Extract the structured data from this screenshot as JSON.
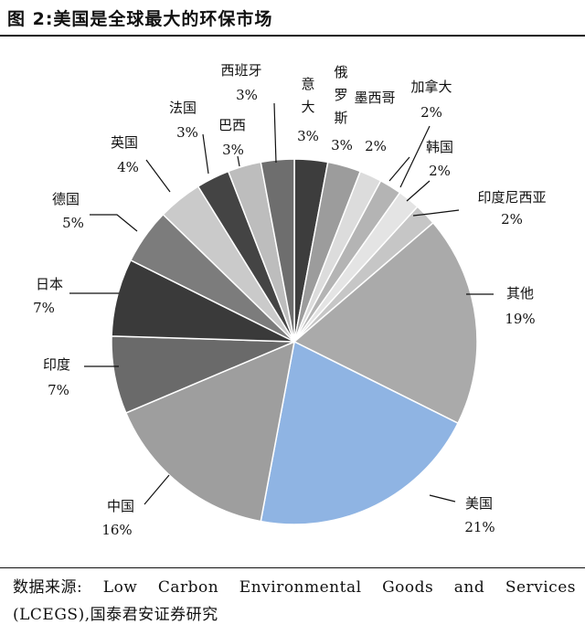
{
  "figure": {
    "title": "图 2:美国是全球最大的环保市场",
    "source_line1": [
      "数据来源:",
      "Low",
      "Carbon",
      "Environmental",
      "Goods",
      "and",
      "Services"
    ],
    "source_line2": "(LCEGS),国泰君安证券研究"
  },
  "chart_data": {
    "type": "pie",
    "title": "图 2:美国是全球最大的环保市场",
    "start": "12 o'clock, clockwise",
    "legend": "none (direct labels with leader lines)",
    "slices": [
      {
        "label": "意大利",
        "value": 3,
        "display": "3%",
        "color": "#3d3d3d"
      },
      {
        "label": "俄罗斯",
        "value": 3,
        "display": "3%",
        "color": "#9c9c9c"
      },
      {
        "label": "墨西哥",
        "value": 2,
        "display": "2%",
        "color": "#dcdcdc"
      },
      {
        "label": "加拿大",
        "value": 2,
        "display": "2%",
        "color": "#b4b4b4"
      },
      {
        "label": "韩国",
        "value": 2,
        "display": "2%",
        "color": "#e4e4e4"
      },
      {
        "label": "印度尼西亚",
        "value": 2,
        "display": "2%",
        "color": "#c6c6c6"
      },
      {
        "label": "其他",
        "value": 19,
        "display": "19%",
        "color": "#aaaaaa"
      },
      {
        "label": "美国",
        "value": 21,
        "display": "21%",
        "color": "#8fb4e3"
      },
      {
        "label": "中国",
        "value": 16,
        "display": "16%",
        "color": "#9e9e9e"
      },
      {
        "label": "印度",
        "value": 7,
        "display": "7%",
        "color": "#6a6a6a"
      },
      {
        "label": "日本",
        "value": 7,
        "display": "7%",
        "color": "#3a3a3a"
      },
      {
        "label": "德国",
        "value": 5,
        "display": "5%",
        "color": "#7c7c7c"
      },
      {
        "label": "英国",
        "value": 4,
        "display": "4%",
        "color": "#cacaca"
      },
      {
        "label": "法国",
        "value": 3,
        "display": "3%",
        "color": "#444444"
      },
      {
        "label": "巴西",
        "value": 3,
        "display": "3%",
        "color": "#bdbdbd"
      },
      {
        "label": "西班牙",
        "value": 3,
        "display": "3%",
        "color": "#6e6e6e"
      }
    ]
  }
}
